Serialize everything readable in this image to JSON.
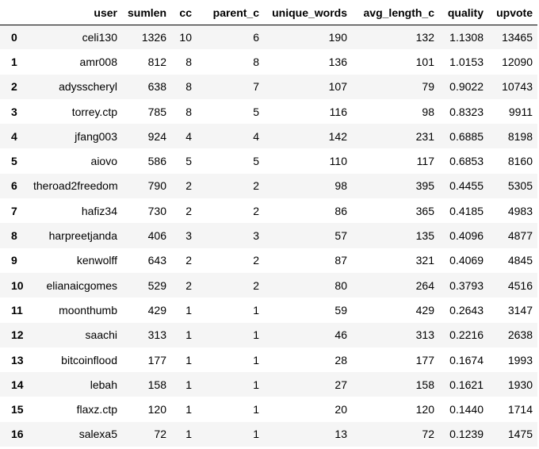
{
  "table": {
    "columns": [
      "user",
      "sumlen",
      "cc",
      "parent_c",
      "unique_words",
      "avg_length_c",
      "quality",
      "upvote"
    ],
    "rows": [
      {
        "index": "0",
        "cells": [
          "celi130",
          "1326",
          "10",
          "6",
          "190",
          "132",
          "1.1308",
          "13465"
        ]
      },
      {
        "index": "1",
        "cells": [
          "amr008",
          "812",
          "8",
          "8",
          "136",
          "101",
          "1.0153",
          "12090"
        ]
      },
      {
        "index": "2",
        "cells": [
          "adysscheryl",
          "638",
          "8",
          "7",
          "107",
          "79",
          "0.9022",
          "10743"
        ]
      },
      {
        "index": "3",
        "cells": [
          "torrey.ctp",
          "785",
          "8",
          "5",
          "116",
          "98",
          "0.8323",
          "9911"
        ]
      },
      {
        "index": "4",
        "cells": [
          "jfang003",
          "924",
          "4",
          "4",
          "142",
          "231",
          "0.6885",
          "8198"
        ]
      },
      {
        "index": "5",
        "cells": [
          "aiovo",
          "586",
          "5",
          "5",
          "110",
          "117",
          "0.6853",
          "8160"
        ]
      },
      {
        "index": "6",
        "cells": [
          "theroad2freedom",
          "790",
          "2",
          "2",
          "98",
          "395",
          "0.4455",
          "5305"
        ]
      },
      {
        "index": "7",
        "cells": [
          "hafiz34",
          "730",
          "2",
          "2",
          "86",
          "365",
          "0.4185",
          "4983"
        ]
      },
      {
        "index": "8",
        "cells": [
          "harpreetjanda",
          "406",
          "3",
          "3",
          "57",
          "135",
          "0.4096",
          "4877"
        ]
      },
      {
        "index": "9",
        "cells": [
          "kenwolff",
          "643",
          "2",
          "2",
          "87",
          "321",
          "0.4069",
          "4845"
        ]
      },
      {
        "index": "10",
        "cells": [
          "elianaicgomes",
          "529",
          "2",
          "2",
          "80",
          "264",
          "0.3793",
          "4516"
        ]
      },
      {
        "index": "11",
        "cells": [
          "moonthumb",
          "429",
          "1",
          "1",
          "59",
          "429",
          "0.2643",
          "3147"
        ]
      },
      {
        "index": "12",
        "cells": [
          "saachi",
          "313",
          "1",
          "1",
          "46",
          "313",
          "0.2216",
          "2638"
        ]
      },
      {
        "index": "13",
        "cells": [
          "bitcoinflood",
          "177",
          "1",
          "1",
          "28",
          "177",
          "0.1674",
          "1993"
        ]
      },
      {
        "index": "14",
        "cells": [
          "lebah",
          "158",
          "1",
          "1",
          "27",
          "158",
          "0.1621",
          "1930"
        ]
      },
      {
        "index": "15",
        "cells": [
          "flaxz.ctp",
          "120",
          "1",
          "1",
          "20",
          "120",
          "0.1440",
          "1714"
        ]
      },
      {
        "index": "16",
        "cells": [
          "salexa5",
          "72",
          "1",
          "1",
          "13",
          "72",
          "0.1239",
          "1475"
        ]
      }
    ]
  }
}
